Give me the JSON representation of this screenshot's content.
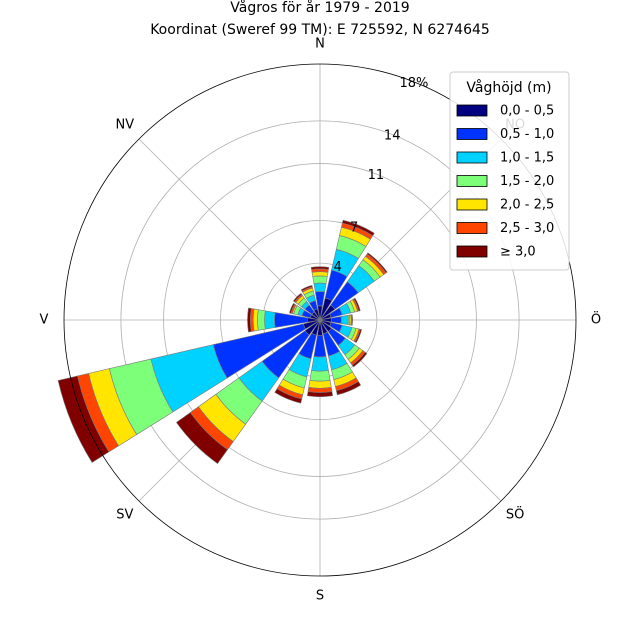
{
  "chart_data": {
    "type": "windrose",
    "title": "Vågros för år 1979 - 2019",
    "subtitle": "Koordinat (Sweref 99 TM): E 725592, N 6274645",
    "directions": [
      "N",
      "NO",
      "Ö",
      "SÖ",
      "S",
      "SV",
      "V",
      "NV"
    ],
    "radial_ticks": [
      "4",
      "7",
      "11",
      "14",
      "18%"
    ],
    "radial_tick_values": [
      4,
      7,
      11,
      14,
      18
    ],
    "rmax": 18,
    "grid": true,
    "legend": {
      "title": "Våghöjd (m)",
      "position": "top-right",
      "entries": [
        {
          "label": "0,0 - 0,5",
          "color": "#000080"
        },
        {
          "label": "0,5 - 1,0",
          "color": "#0033ff"
        },
        {
          "label": "1,0 - 1,5",
          "color": "#00d2ff"
        },
        {
          "label": "1,5 - 2,0",
          "color": "#7dff7a"
        },
        {
          "label": "2,0 - 2,5",
          "color": "#ffe500"
        },
        {
          "label": "2,5 - 3,0",
          "color": "#ff4500"
        },
        {
          "label": "≥ 3,0",
          "color": "#800000"
        }
      ]
    },
    "bin_directions_deg": [
      0,
      22.5,
      45,
      67.5,
      90,
      112.5,
      135,
      157.5,
      180,
      202.5,
      225,
      247.5,
      270,
      292.5,
      315,
      337.5
    ],
    "series": [
      {
        "name": "0,0 - 0,5",
        "values": [
          1.0,
          1.6,
          1.3,
          0.8,
          0.8,
          0.8,
          1.0,
          1.0,
          1.1,
          1.1,
          1.3,
          1.2,
          0.9,
          0.7,
          0.7,
          0.8
        ]
      },
      {
        "name": "0,5 - 1,0",
        "values": [
          1.0,
          2.0,
          2.0,
          0.8,
          0.7,
          0.8,
          1.2,
          1.6,
          1.5,
          1.7,
          3.7,
          6.5,
          2.3,
          0.6,
          0.6,
          0.6
        ]
      },
      {
        "name": "1,0 - 1,5",
        "values": [
          0.6,
          1.5,
          1.4,
          0.6,
          0.5,
          0.7,
          0.8,
          1.0,
          1.0,
          1.3,
          2.0,
          4.5,
          0.7,
          0.3,
          0.3,
          0.4
        ]
      },
      {
        "name": "1,5 - 2,0",
        "values": [
          0.5,
          1.0,
          0.5,
          0.3,
          0.1,
          0.3,
          0.4,
          0.7,
          0.7,
          0.8,
          2.0,
          3.0,
          0.5,
          0.3,
          0.3,
          0.3
        ]
      },
      {
        "name": "2,0 - 2,5",
        "values": [
          0.3,
          0.6,
          0.3,
          0.2,
          0.1,
          0.2,
          0.3,
          0.5,
          0.5,
          0.5,
          1.5,
          1.5,
          0.3,
          0.1,
          0.2,
          0.2
        ]
      },
      {
        "name": "2,5 - 3,0",
        "values": [
          0.2,
          0.3,
          0.2,
          0.1,
          0.05,
          0.1,
          0.2,
          0.3,
          0.3,
          0.3,
          0.7,
          0.8,
          0.2,
          0.1,
          0.1,
          0.1
        ]
      },
      {
        "name": "≥ 3,0",
        "values": [
          0.15,
          0.2,
          0.1,
          0.1,
          0.05,
          0.1,
          0.15,
          0.3,
          0.3,
          0.3,
          1.2,
          1.4,
          0.2,
          0.1,
          0.1,
          0.1
        ]
      }
    ]
  }
}
